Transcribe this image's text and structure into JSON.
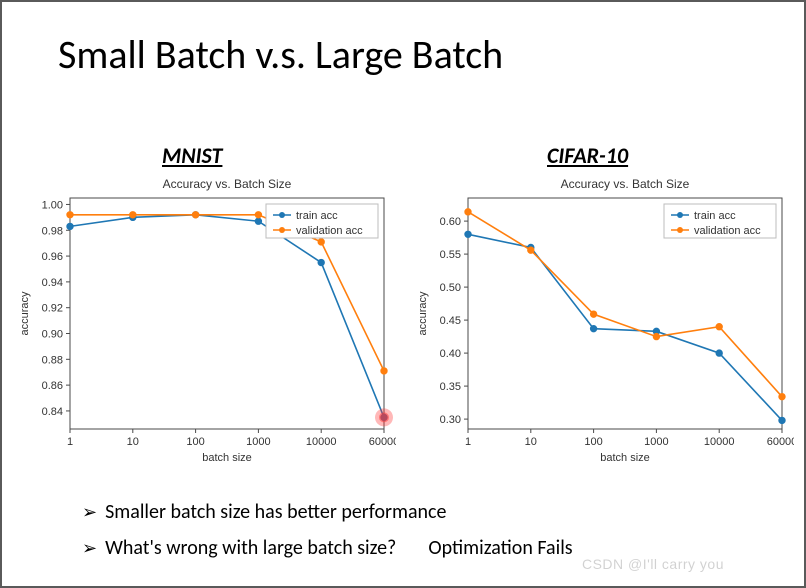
{
  "title": "Small Batch v.s. Large Batch",
  "labels": {
    "left": "MNIST",
    "right": "CIFAR-10"
  },
  "bullets": {
    "b1": "Smaller batch size has better performance",
    "b2": "What's wrong with large batch size?",
    "ans": "Optimization Fails"
  },
  "watermark": "CSDN @I'll carry you",
  "palette": {
    "train": "#1f77b4",
    "val": "#ff7f0e",
    "axis": "#4a4a4a",
    "grid": "#dcdcdc",
    "text": "#333333",
    "highlight_fill": "#ff3333",
    "highlight_alpha": 0.35
  },
  "axis_font": {
    "tick": 11,
    "label": 11,
    "legend": 11,
    "title": 12
  },
  "xcats": [
    1,
    10,
    100,
    1000,
    10000,
    60000
  ],
  "chart_left": {
    "title": "Accuracy vs. Batch Size",
    "xlabel": "batch size",
    "ylabel": "accuracy",
    "yticks": [
      0.84,
      0.86,
      0.88,
      0.9,
      0.92,
      0.94,
      0.96,
      0.98,
      1.0
    ],
    "ylim": [
      0.826,
      1.005
    ],
    "series": {
      "train": {
        "label": "train acc",
        "y": [
          0.983,
          0.99,
          0.992,
          0.987,
          0.955,
          0.835
        ]
      },
      "val": {
        "label": "validation acc",
        "y": [
          0.992,
          0.992,
          0.992,
          0.992,
          0.971,
          0.871
        ]
      }
    },
    "legend_pos": "top-right",
    "highlight": {
      "x_index": 5,
      "y": 0.835,
      "r": 7
    }
  },
  "chart_right": {
    "title": "Accuracy vs. Batch Size",
    "xlabel": "batch size",
    "ylabel": "accuracy",
    "yticks": [
      0.3,
      0.35,
      0.4,
      0.45,
      0.5,
      0.55,
      0.6
    ],
    "ylim": [
      0.285,
      0.635
    ],
    "series": {
      "train": {
        "label": "train acc",
        "y": [
          0.58,
          0.56,
          0.437,
          0.433,
          0.4,
          0.298
        ]
      },
      "val": {
        "label": "validation acc",
        "y": [
          0.614,
          0.556,
          0.459,
          0.425,
          0.44,
          0.334
        ]
      }
    },
    "legend_pos": "top-right"
  }
}
